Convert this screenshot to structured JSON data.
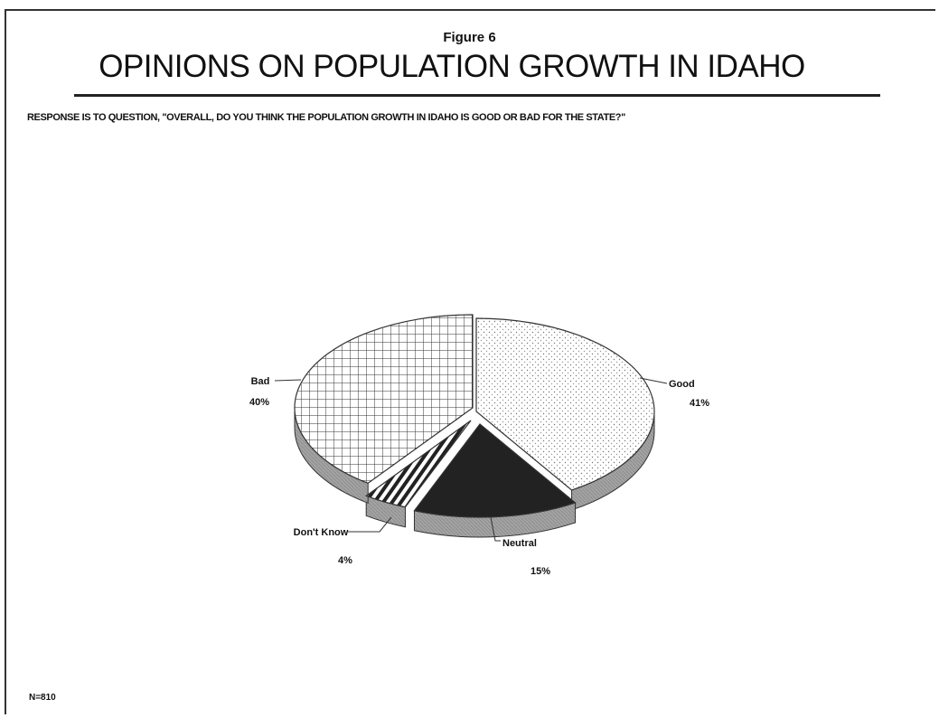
{
  "figure_label": "Figure 6",
  "title": "OPINIONS ON POPULATION GROWTH IN IDAHO",
  "question": "RESPONSE IS TO QUESTION, \"OVERALL, DO YOU THINK THE POPULATION GROWTH IN IDAHO IS GOOD OR BAD FOR THE STATE?\"",
  "sample_note": "N=810",
  "chart_data": {
    "type": "pie",
    "title": "OPINIONS ON POPULATION GROWTH IN IDAHO",
    "slices": [
      {
        "label": "Good",
        "value": 41,
        "value_label": "41%",
        "pattern": "dots"
      },
      {
        "label": "Neutral",
        "value": 15,
        "value_label": "15%",
        "pattern": "solid-dark"
      },
      {
        "label": "Don't Know",
        "value": 4,
        "value_label": "4%",
        "pattern": "diagonal-stripes"
      },
      {
        "label": "Bad",
        "value": 40,
        "value_label": "40%",
        "pattern": "grid"
      }
    ],
    "style": "3d-exploded-pie",
    "colors": {
      "neutral": "#222222",
      "side": "#9a9a9a",
      "outline": "#333333"
    }
  }
}
